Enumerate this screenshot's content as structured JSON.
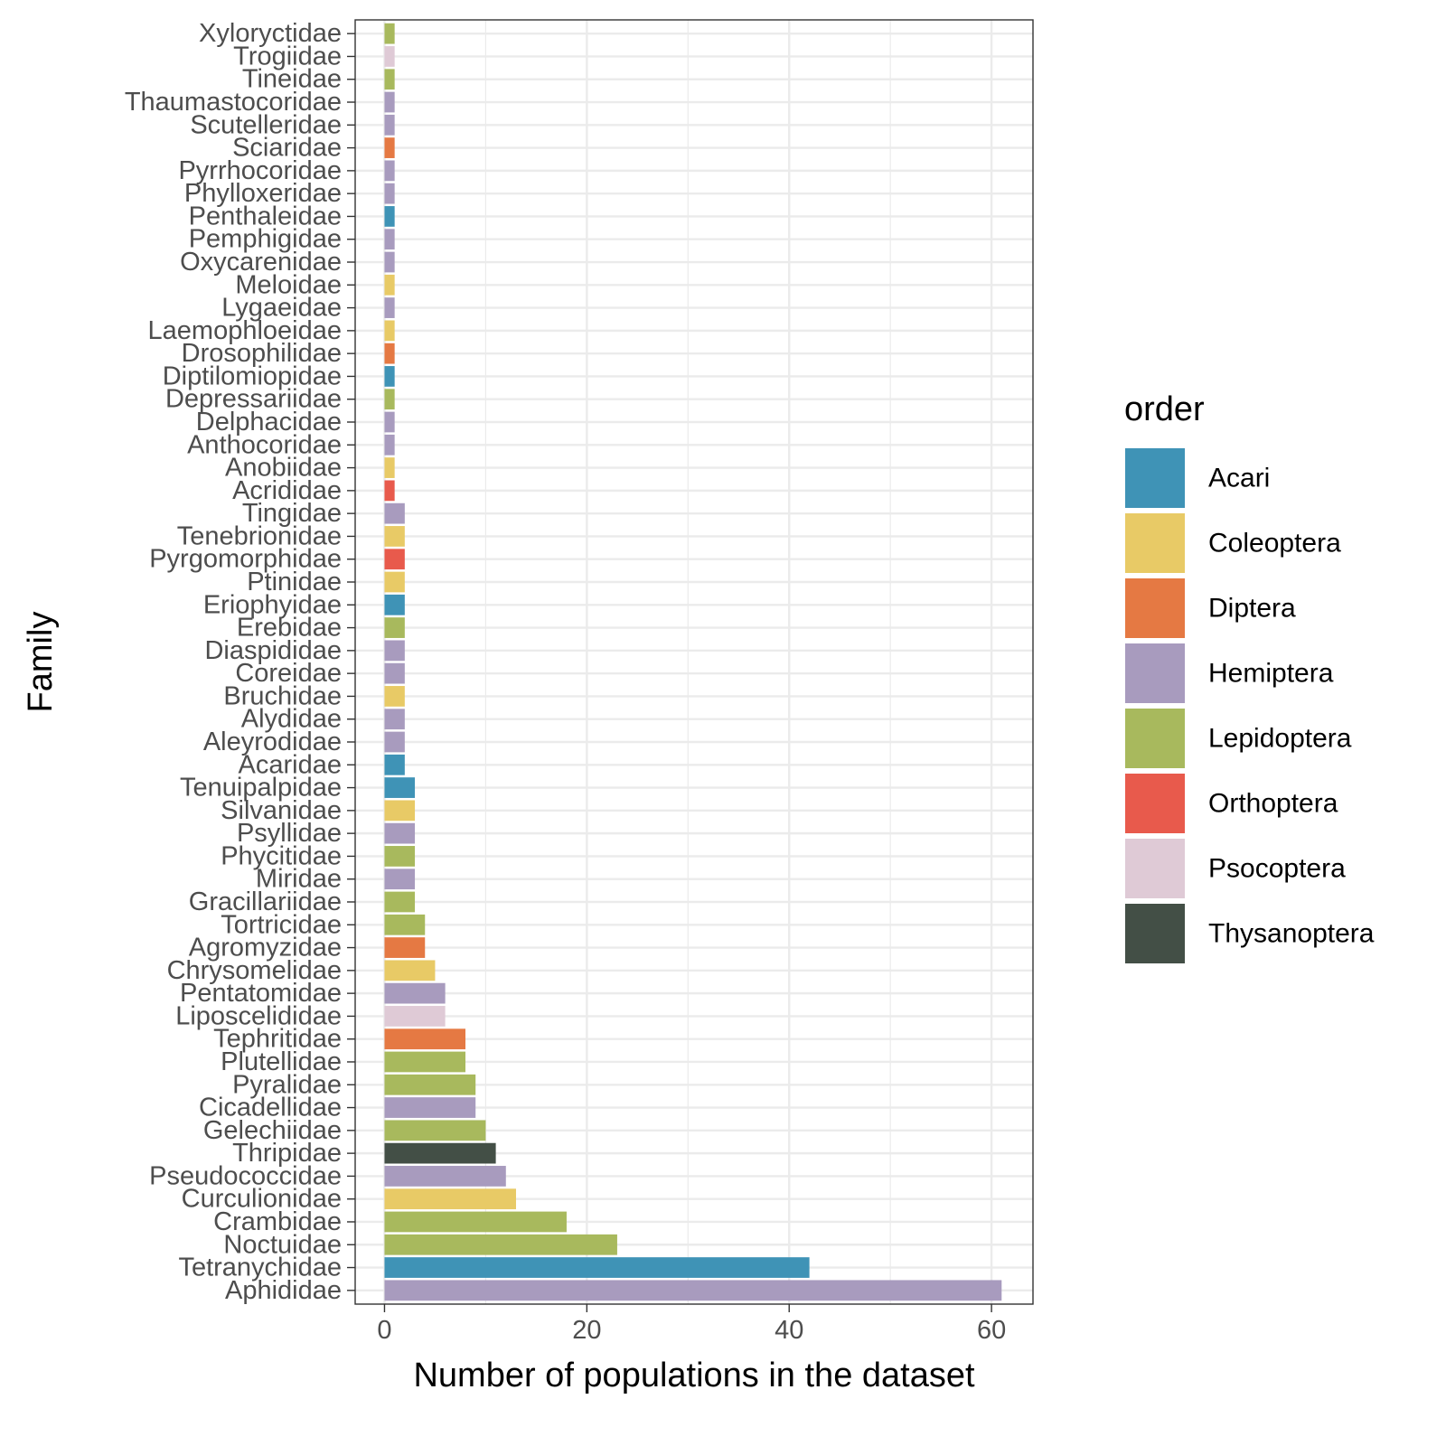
{
  "chart_data": {
    "type": "bar",
    "orientation": "horizontal",
    "xlabel": "Number of populations in the dataset",
    "ylabel": "Family",
    "xlim": [
      -2.9,
      64.1
    ],
    "xticks": [
      0,
      20,
      40,
      60
    ],
    "xtick_labels": [
      "0",
      "20",
      "40",
      "60"
    ],
    "grid": true,
    "legend": {
      "title": "order",
      "position": "right",
      "items": [
        {
          "label": "Acari",
          "color": "#3F93B6"
        },
        {
          "label": "Coleoptera",
          "color": "#E8CA66"
        },
        {
          "label": "Diptera",
          "color": "#E57943"
        },
        {
          "label": "Hemiptera",
          "color": "#A89BBE"
        },
        {
          "label": "Lepidoptera",
          "color": "#A8B95D"
        },
        {
          "label": "Orthoptera",
          "color": "#E85A4C"
        },
        {
          "label": "Psocoptera",
          "color": "#DFCAD6"
        },
        {
          "label": "Thysanoptera",
          "color": "#434F46"
        }
      ]
    },
    "categories": [
      "Xyloryctidae",
      "Trogiidae",
      "Tineidae",
      "Thaumastocoridae",
      "Scutelleridae",
      "Sciaridae",
      "Pyrrhocoridae",
      "Phylloxeridae",
      "Penthaleidae",
      "Pemphigidae",
      "Oxycarenidae",
      "Meloidae",
      "Lygaeidae",
      "Laemophloeidae",
      "Drosophilidae",
      "Diptilomiopidae",
      "Depressariidae",
      "Delphacidae",
      "Anthocoridae",
      "Anobiidae",
      "Acrididae",
      "Tingidae",
      "Tenebrionidae",
      "Pyrgomorphidae",
      "Ptinidae",
      "Eriophyidae",
      "Erebidae",
      "Diaspididae",
      "Coreidae",
      "Bruchidae",
      "Alydidae",
      "Aleyrodidae",
      "Acaridae",
      "Tenuipalpidae",
      "Silvanidae",
      "Psyllidae",
      "Phycitidae",
      "Miridae",
      "Gracillariidae",
      "Tortricidae",
      "Agromyzidae",
      "Chrysomelidae",
      "Pentatomidae",
      "Liposcelididae",
      "Tephritidae",
      "Plutellidae",
      "Pyralidae",
      "Cicadellidae",
      "Gelechiidae",
      "Thripidae",
      "Pseudococcidae",
      "Curculionidae",
      "Crambidae",
      "Noctuidae",
      "Tetranychidae",
      "Aphididae"
    ],
    "values": [
      1,
      1,
      1,
      1,
      1,
      1,
      1,
      1,
      1,
      1,
      1,
      1,
      1,
      1,
      1,
      1,
      1,
      1,
      1,
      1,
      1,
      2,
      2,
      2,
      2,
      2,
      2,
      2,
      2,
      2,
      2,
      2,
      2,
      3,
      3,
      3,
      3,
      3,
      3,
      4,
      4,
      5,
      6,
      6,
      8,
      8,
      9,
      9,
      10,
      11,
      12,
      13,
      18,
      23,
      42,
      61
    ],
    "order": [
      "Lepidoptera",
      "Psocoptera",
      "Lepidoptera",
      "Hemiptera",
      "Hemiptera",
      "Diptera",
      "Hemiptera",
      "Hemiptera",
      "Acari",
      "Hemiptera",
      "Hemiptera",
      "Coleoptera",
      "Hemiptera",
      "Coleoptera",
      "Diptera",
      "Acari",
      "Lepidoptera",
      "Hemiptera",
      "Hemiptera",
      "Coleoptera",
      "Orthoptera",
      "Hemiptera",
      "Coleoptera",
      "Orthoptera",
      "Coleoptera",
      "Acari",
      "Lepidoptera",
      "Hemiptera",
      "Hemiptera",
      "Coleoptera",
      "Hemiptera",
      "Hemiptera",
      "Acari",
      "Acari",
      "Coleoptera",
      "Hemiptera",
      "Lepidoptera",
      "Hemiptera",
      "Lepidoptera",
      "Lepidoptera",
      "Diptera",
      "Coleoptera",
      "Hemiptera",
      "Psocoptera",
      "Diptera",
      "Lepidoptera",
      "Lepidoptera",
      "Hemiptera",
      "Lepidoptera",
      "Thysanoptera",
      "Hemiptera",
      "Coleoptera",
      "Lepidoptera",
      "Lepidoptera",
      "Acari",
      "Hemiptera"
    ]
  }
}
